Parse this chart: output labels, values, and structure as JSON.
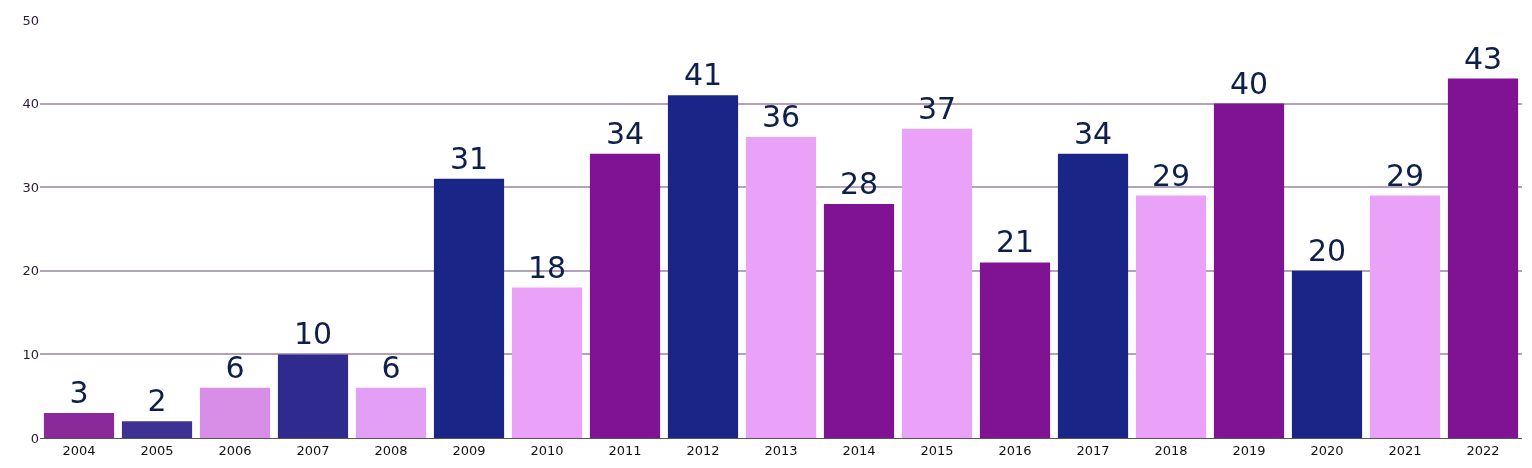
{
  "chart_data": {
    "type": "bar",
    "categories": [
      "2004",
      "2005",
      "2006",
      "2007",
      "2008",
      "2009",
      "2010",
      "2011",
      "2012",
      "2013",
      "2014",
      "2015",
      "2016",
      "2017",
      "2018",
      "2019",
      "2020",
      "2021",
      "2022"
    ],
    "values": [
      3,
      2,
      6,
      10,
      6,
      31,
      18,
      34,
      41,
      36,
      28,
      37,
      21,
      34,
      29,
      40,
      20,
      29,
      43
    ],
    "colors": [
      "#8a2a9a",
      "#3f3193",
      "#d88de6",
      "#2e2a8e",
      "#e39ef5",
      "#1a2687",
      "#e9a2f8",
      "#7f1393",
      "#1a2687",
      "#e9a2f8",
      "#7f1393",
      "#e9a2f8",
      "#7f1393",
      "#1a2687",
      "#e9a2f8",
      "#7f1393",
      "#1a2687",
      "#e9a2f8",
      "#7f1393"
    ],
    "ylim": [
      0,
      50
    ],
    "yticks": [
      0,
      10,
      20,
      30,
      40,
      50
    ],
    "grid": "y",
    "data_labels": true
  }
}
